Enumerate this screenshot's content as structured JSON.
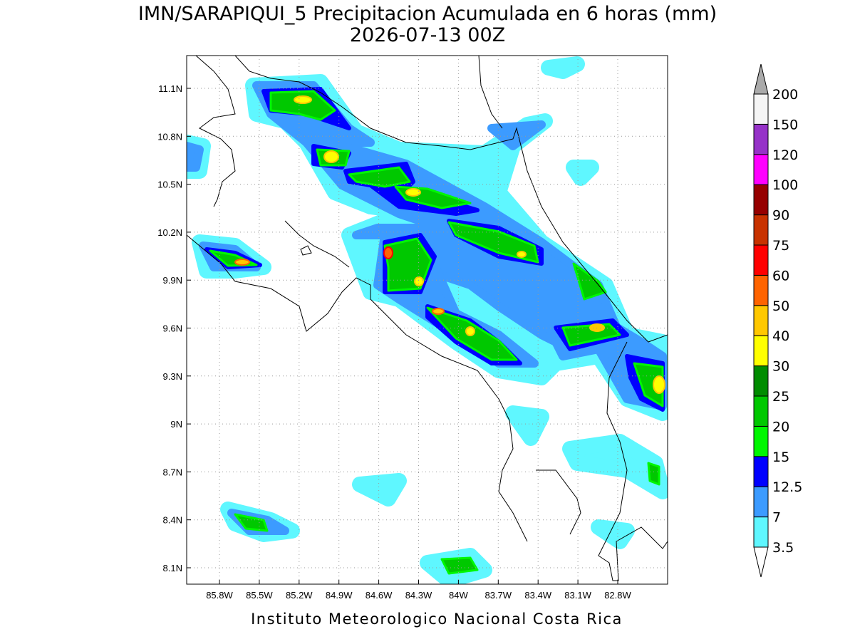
{
  "title": "IMN/SARAPIQUI_5 Precipitacion Acumulada en 6 horas (mm)",
  "subtitle": "2026-07-13 00Z",
  "map": {
    "lat_labels": [
      "11.1N",
      "10.8N",
      "10.5N",
      "10.2N",
      "9.9N",
      "9.6N",
      "9.3N",
      "9N",
      "8.7N",
      "8.4N",
      "8.1N"
    ],
    "lon_labels": [
      "85.8W",
      "85.5W",
      "85.2W",
      "84.9W",
      "84.6W",
      "84.3W",
      "84W",
      "83.7W",
      "83.4W",
      "83.1W",
      "82.8W"
    ]
  },
  "colorbar": {
    "levels": [
      3.5,
      7,
      12.5,
      15,
      20,
      25,
      30,
      40,
      50,
      60,
      75,
      90,
      100,
      120,
      150,
      200
    ],
    "colors": [
      "#5ff7ff",
      "#3c9bff",
      "#0000ff",
      "#00f700",
      "#00c800",
      "#008c00",
      "#ffff00",
      "#ffc800",
      "#ff6400",
      "#ff0000",
      "#c83200",
      "#960000",
      "#ff00ff",
      "#9632c8",
      "#f5f5f5"
    ],
    "under_color": "#ffffff",
    "over_color": "#aaaaaa"
  },
  "footer": "Instituto Meteorologico Nacional Costa Rica"
}
